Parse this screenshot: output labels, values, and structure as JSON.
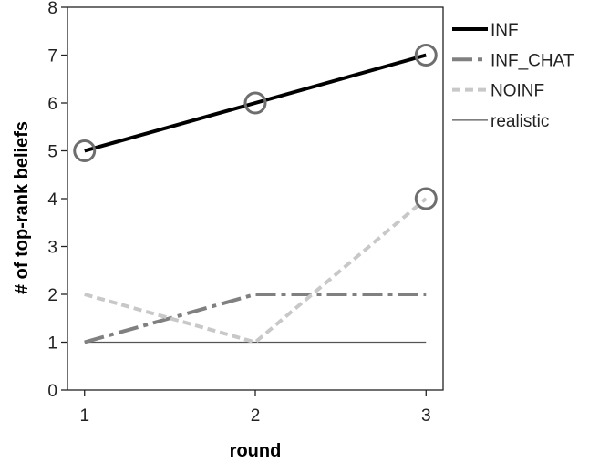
{
  "chart_data": {
    "type": "line",
    "title": "",
    "xlabel": "round",
    "ylabel": "# of top-rank beliefs",
    "x": [
      1,
      2,
      3
    ],
    "xlim": [
      0.9,
      3.1
    ],
    "ylim": [
      0,
      8
    ],
    "y_ticks": [
      0,
      1,
      2,
      3,
      4,
      5,
      6,
      7,
      8
    ],
    "grid": false,
    "legend_position": "outside-right-top",
    "series": [
      {
        "name": "INF",
        "values": [
          5,
          6,
          7
        ],
        "color": "#000000",
        "style": "solid-thick",
        "circled_points": [
          true,
          true,
          true
        ]
      },
      {
        "name": "INF_CHAT",
        "values": [
          1,
          2,
          2
        ],
        "color": "#808080",
        "style": "dash-dot",
        "circled_points": [
          false,
          false,
          false
        ]
      },
      {
        "name": "NOINF",
        "values": [
          2,
          1,
          4
        ],
        "color": "#c8c8c8",
        "style": "dashed",
        "circled_points": [
          false,
          false,
          true
        ]
      },
      {
        "name": "realistic",
        "values": [
          1,
          1,
          1
        ],
        "color": "#555555",
        "style": "solid-thin",
        "circled_points": [
          false,
          false,
          false
        ]
      }
    ],
    "marker_color": "#6e6e6e"
  }
}
